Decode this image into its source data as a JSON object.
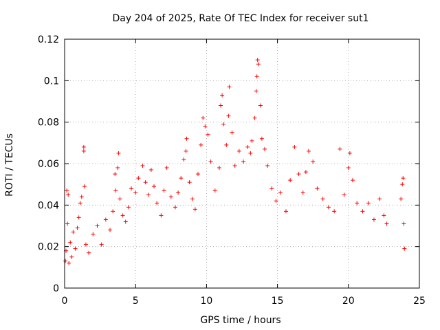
{
  "chart_data": {
    "type": "scatter",
    "title": "Day 204 of 2025, Rate Of TEC Index for receiver sut1",
    "xlabel": "GPS time / hours",
    "ylabel": "ROTI / TECUs",
    "xlim": [
      0,
      25
    ],
    "ylim": [
      0,
      0.12
    ],
    "xticks": [
      "0",
      "5",
      "10",
      "15",
      "20",
      "25"
    ],
    "yticks": [
      "0",
      "0.02",
      "0.04",
      "0.06",
      "0.08",
      "0.1",
      "0.12"
    ],
    "grid": true,
    "marker": "+",
    "color": "#ff0000",
    "series": [
      {
        "points": [
          [
            0.05,
            0.013
          ],
          [
            0.1,
            0.018
          ],
          [
            0.15,
            0.047
          ],
          [
            0.2,
            0.031
          ],
          [
            0.25,
            0.045
          ],
          [
            0.3,
            0.012
          ],
          [
            0.4,
            0.022
          ],
          [
            0.5,
            0.015
          ],
          [
            0.6,
            0.027
          ],
          [
            0.75,
            0.019
          ],
          [
            0.9,
            0.029
          ],
          [
            1.0,
            0.034
          ],
          [
            1.1,
            0.041
          ],
          [
            1.2,
            0.044
          ],
          [
            1.35,
            0.066
          ],
          [
            1.35,
            0.068
          ],
          [
            1.4,
            0.049
          ],
          [
            1.5,
            0.021
          ],
          [
            1.7,
            0.017
          ],
          [
            2.0,
            0.026
          ],
          [
            2.3,
            0.03
          ],
          [
            2.6,
            0.021
          ],
          [
            2.9,
            0.033
          ],
          [
            3.2,
            0.028
          ],
          [
            3.4,
            0.037
          ],
          [
            3.55,
            0.055
          ],
          [
            3.6,
            0.047
          ],
          [
            3.75,
            0.058
          ],
          [
            3.8,
            0.065
          ],
          [
            3.9,
            0.043
          ],
          [
            4.1,
            0.035
          ],
          [
            4.3,
            0.032
          ],
          [
            4.5,
            0.039
          ],
          [
            4.7,
            0.048
          ],
          [
            5.0,
            0.046
          ],
          [
            5.2,
            0.053
          ],
          [
            5.5,
            0.059
          ],
          [
            5.7,
            0.051
          ],
          [
            5.9,
            0.045
          ],
          [
            6.1,
            0.057
          ],
          [
            6.3,
            0.049
          ],
          [
            6.5,
            0.041
          ],
          [
            6.8,
            0.035
          ],
          [
            7.0,
            0.047
          ],
          [
            7.2,
            0.058
          ],
          [
            7.5,
            0.044
          ],
          [
            7.8,
            0.039
          ],
          [
            8.0,
            0.046
          ],
          [
            8.2,
            0.053
          ],
          [
            8.4,
            0.062
          ],
          [
            8.55,
            0.066
          ],
          [
            8.6,
            0.072
          ],
          [
            8.8,
            0.051
          ],
          [
            9.0,
            0.043
          ],
          [
            9.2,
            0.038
          ],
          [
            9.4,
            0.055
          ],
          [
            9.6,
            0.069
          ],
          [
            9.75,
            0.082
          ],
          [
            9.9,
            0.078
          ],
          [
            10.1,
            0.074
          ],
          [
            10.3,
            0.061
          ],
          [
            10.6,
            0.047
          ],
          [
            10.9,
            0.058
          ],
          [
            11.0,
            0.088
          ],
          [
            11.1,
            0.093
          ],
          [
            11.2,
            0.079
          ],
          [
            11.4,
            0.069
          ],
          [
            11.55,
            0.083
          ],
          [
            11.6,
            0.097
          ],
          [
            11.8,
            0.075
          ],
          [
            12.0,
            0.059
          ],
          [
            12.3,
            0.066
          ],
          [
            12.6,
            0.061
          ],
          [
            12.9,
            0.068
          ],
          [
            13.1,
            0.065
          ],
          [
            13.2,
            0.071
          ],
          [
            13.4,
            0.082
          ],
          [
            13.5,
            0.095
          ],
          [
            13.55,
            0.102
          ],
          [
            13.6,
            0.11
          ],
          [
            13.65,
            0.108
          ],
          [
            13.8,
            0.088
          ],
          [
            13.9,
            0.072
          ],
          [
            14.1,
            0.067
          ],
          [
            14.3,
            0.059
          ],
          [
            14.6,
            0.048
          ],
          [
            14.9,
            0.042
          ],
          [
            15.2,
            0.046
          ],
          [
            15.6,
            0.037
          ],
          [
            15.9,
            0.052
          ],
          [
            16.2,
            0.068
          ],
          [
            16.5,
            0.055
          ],
          [
            16.8,
            0.046
          ],
          [
            17.0,
            0.056
          ],
          [
            17.2,
            0.066
          ],
          [
            17.5,
            0.061
          ],
          [
            17.8,
            0.048
          ],
          [
            18.2,
            0.043
          ],
          [
            18.6,
            0.039
          ],
          [
            19.0,
            0.037
          ],
          [
            19.4,
            0.067
          ],
          [
            19.7,
            0.045
          ],
          [
            20.0,
            0.058
          ],
          [
            20.1,
            0.065
          ],
          [
            20.3,
            0.052
          ],
          [
            20.6,
            0.041
          ],
          [
            21.0,
            0.037
          ],
          [
            21.4,
            0.041
          ],
          [
            21.8,
            0.033
          ],
          [
            22.2,
            0.043
          ],
          [
            22.5,
            0.035
          ],
          [
            22.7,
            0.031
          ],
          [
            23.7,
            0.043
          ],
          [
            23.8,
            0.05
          ],
          [
            23.85,
            0.053
          ],
          [
            23.9,
            0.031
          ],
          [
            23.95,
            0.019
          ]
        ]
      }
    ]
  }
}
